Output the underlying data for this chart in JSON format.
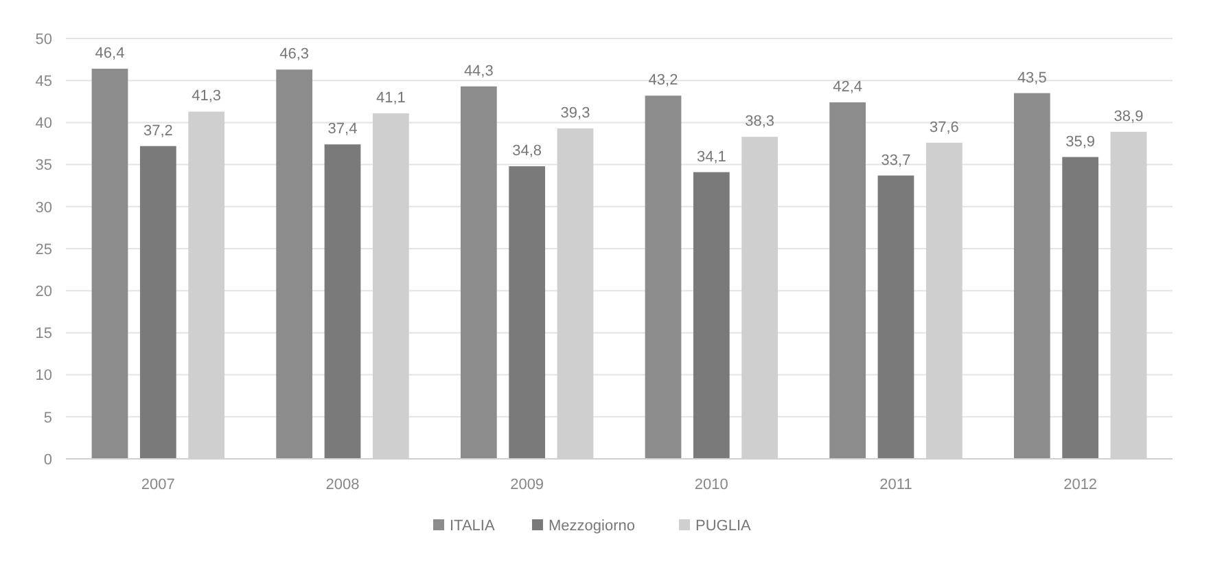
{
  "chart_data": {
    "type": "bar",
    "categories": [
      "2007",
      "2008",
      "2009",
      "2010",
      "2011",
      "2012"
    ],
    "series": [
      {
        "name": "ITALIA",
        "color": "#8c8c8c",
        "values": [
          46.4,
          46.3,
          44.3,
          43.2,
          42.4,
          43.5
        ],
        "value_labels": [
          "46,4",
          "46,3",
          "44,3",
          "43,2",
          "42,4",
          "43,5"
        ]
      },
      {
        "name": "Mezzogiorno",
        "color": "#7a7a7a",
        "values": [
          37.2,
          37.4,
          34.8,
          34.1,
          33.7,
          35.9
        ],
        "value_labels": [
          "37,2",
          "37,4",
          "34,8",
          "34,1",
          "33,7",
          "35,9"
        ]
      },
      {
        "name": "PUGLIA",
        "color": "#cfcfcf",
        "values": [
          41.3,
          41.1,
          39.3,
          38.3,
          37.6,
          38.9
        ],
        "value_labels": [
          "41,3",
          "41,1",
          "39,3",
          "38,3",
          "37,6",
          "38,9"
        ]
      }
    ],
    "ylim": [
      0,
      50
    ],
    "yticks": [
      0,
      5,
      10,
      15,
      20,
      25,
      30,
      35,
      40,
      45,
      50
    ],
    "grid": "y",
    "legend": "bottom"
  }
}
